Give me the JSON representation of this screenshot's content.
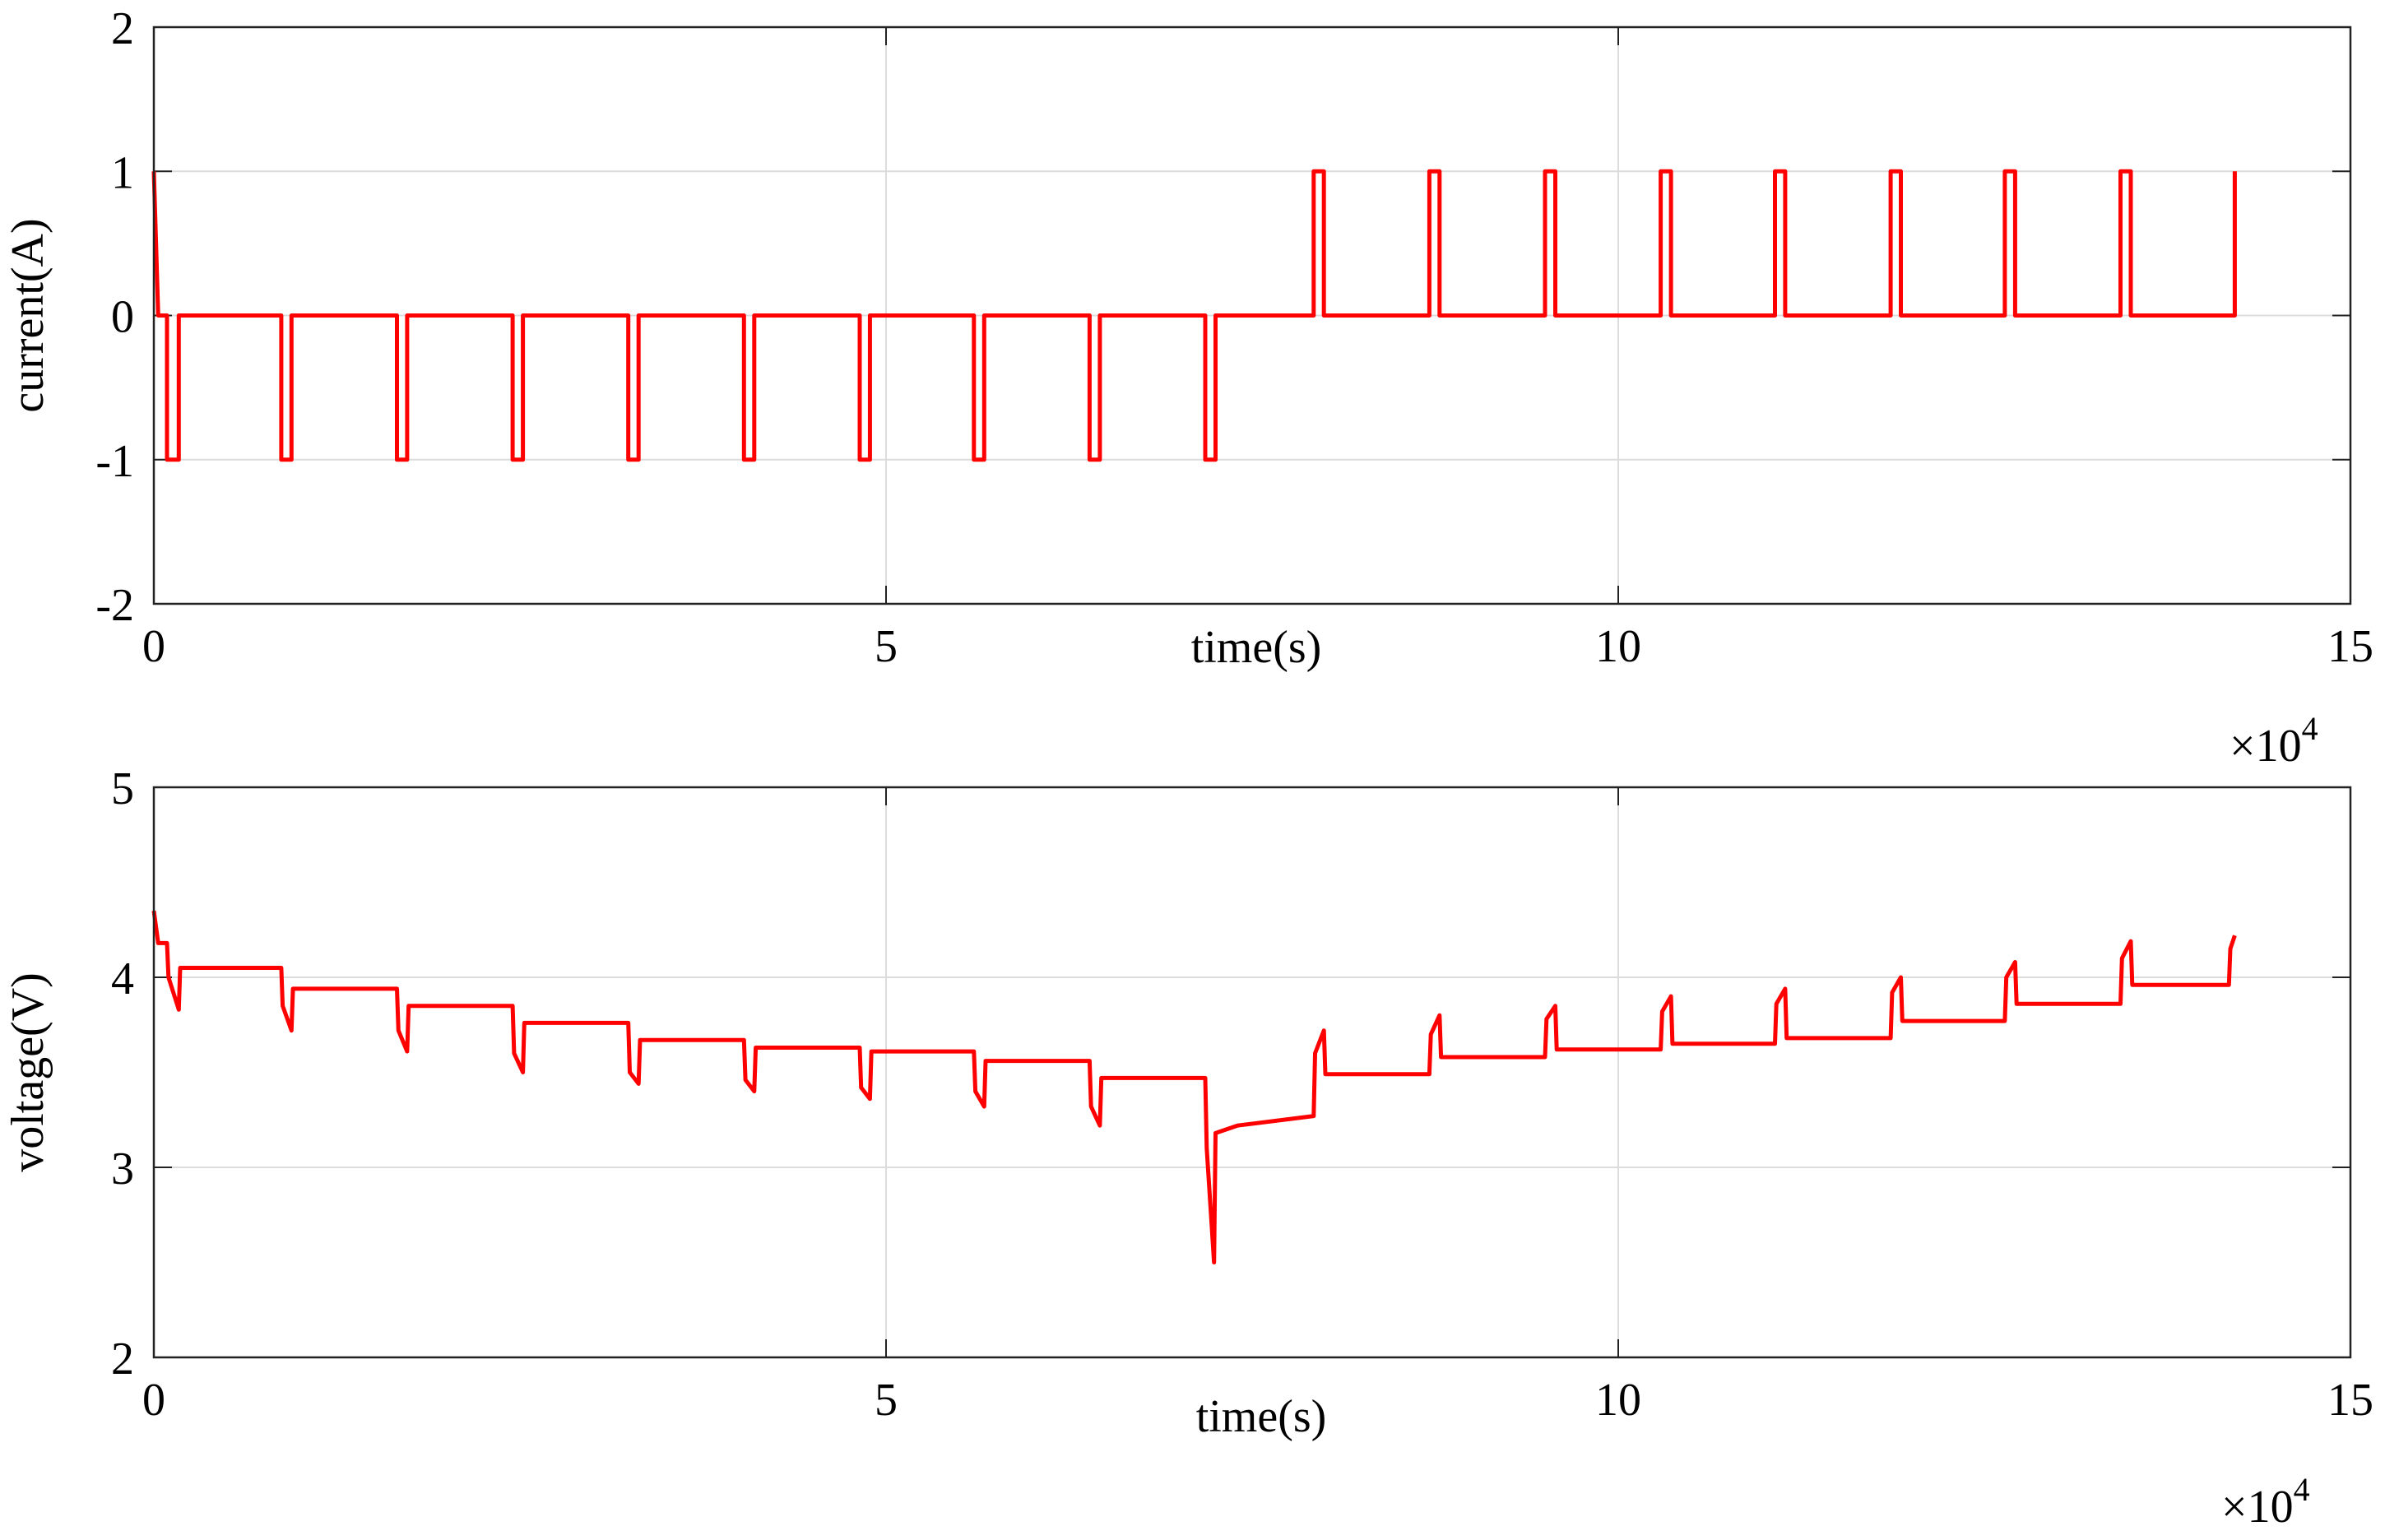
{
  "chart_data": [
    {
      "type": "line",
      "x_label": "time(s)",
      "y_label": "current(A)",
      "x_multiplier": {
        "base": "×10",
        "exponent": "4"
      },
      "xlim": [
        0,
        15
      ],
      "xticks": [
        0,
        5,
        10,
        15
      ],
      "ylim": [
        -2,
        2
      ],
      "yticks": [
        -2,
        -1,
        0,
        1,
        2
      ],
      "grid": true,
      "x": [
        0,
        0.03,
        0.09,
        0.09,
        0.17,
        0.17,
        0.87,
        0.87,
        0.94,
        0.94,
        1.66,
        1.66,
        1.73,
        1.73,
        2.45,
        2.45,
        2.52,
        2.52,
        3.24,
        3.24,
        3.31,
        3.31,
        4.03,
        4.03,
        4.1,
        4.1,
        4.82,
        4.82,
        4.89,
        4.89,
        5.6,
        5.6,
        5.67,
        5.67,
        6.39,
        6.39,
        6.46,
        6.46,
        7.18,
        7.18,
        7.25,
        7.25,
        7.92,
        7.92,
        7.99,
        7.99,
        8.71,
        8.71,
        8.78,
        8.78,
        9.5,
        9.5,
        9.57,
        9.57,
        10.29,
        10.29,
        10.36,
        10.36,
        11.07,
        11.07,
        11.14,
        11.14,
        11.86,
        11.86,
        11.93,
        11.93,
        12.64,
        12.64,
        12.71,
        12.71,
        13.43,
        13.43,
        13.5,
        13.5,
        14.21,
        14.21
      ],
      "series": [
        {
          "color": "#ff0000",
          "values": [
            1,
            0,
            0,
            -1,
            -1,
            0,
            0,
            -1,
            -1,
            0,
            0,
            -1,
            -1,
            0,
            0,
            -1,
            -1,
            0,
            0,
            -1,
            -1,
            0,
            0,
            -1,
            -1,
            0,
            0,
            -1,
            -1,
            0,
            0,
            -1,
            -1,
            0,
            0,
            -1,
            -1,
            0,
            0,
            -1,
            -1,
            0,
            0,
            1,
            1,
            0,
            0,
            1,
            1,
            0,
            0,
            1,
            1,
            0,
            0,
            1,
            1,
            0,
            0,
            1,
            1,
            0,
            0,
            1,
            1,
            0,
            0,
            1,
            1,
            0,
            0,
            1,
            1,
            0,
            0,
            1
          ]
        }
      ]
    },
    {
      "type": "line",
      "x_label": "time(s)",
      "y_label": "voltage(V)",
      "x_multiplier": {
        "base": "×10",
        "exponent": "4"
      },
      "xlim": [
        0,
        15
      ],
      "xticks": [
        0,
        5,
        10,
        15
      ],
      "ylim": [
        2,
        5
      ],
      "yticks": [
        2,
        3,
        4,
        5
      ],
      "grid": true,
      "x": [
        0,
        0.03,
        0.09,
        0.1,
        0.17,
        0.18,
        0.87,
        0.88,
        0.94,
        0.95,
        1.66,
        1.67,
        1.73,
        1.74,
        2.45,
        2.46,
        2.52,
        2.53,
        3.24,
        3.25,
        3.31,
        3.32,
        4.03,
        4.04,
        4.1,
        4.11,
        4.82,
        4.83,
        4.89,
        4.9,
        5.6,
        5.61,
        5.67,
        5.68,
        6.39,
        6.4,
        6.46,
        6.47,
        7.18,
        7.19,
        7.24,
        7.25,
        7.4,
        7.92,
        7.93,
        7.99,
        8.0,
        8.71,
        8.72,
        8.78,
        8.79,
        9.5,
        9.51,
        9.57,
        9.58,
        10.29,
        10.3,
        10.36,
        10.37,
        11.07,
        11.08,
        11.14,
        11.15,
        11.86,
        11.87,
        11.93,
        11.94,
        12.64,
        12.65,
        12.71,
        12.72,
        13.43,
        13.44,
        13.5,
        13.51,
        14.17,
        14.18,
        14.21
      ],
      "series": [
        {
          "color": "#ff0000",
          "values": [
            4.35,
            4.18,
            4.18,
            4.0,
            3.83,
            4.05,
            4.05,
            3.85,
            3.72,
            3.94,
            3.94,
            3.72,
            3.61,
            3.85,
            3.85,
            3.6,
            3.5,
            3.76,
            3.76,
            3.5,
            3.44,
            3.67,
            3.67,
            3.46,
            3.4,
            3.63,
            3.63,
            3.42,
            3.36,
            3.61,
            3.61,
            3.4,
            3.32,
            3.56,
            3.56,
            3.32,
            3.22,
            3.47,
            3.47,
            3.1,
            2.5,
            3.18,
            3.22,
            3.27,
            3.6,
            3.72,
            3.49,
            3.49,
            3.7,
            3.8,
            3.58,
            3.58,
            3.78,
            3.85,
            3.62,
            3.62,
            3.82,
            3.9,
            3.65,
            3.65,
            3.86,
            3.94,
            3.68,
            3.68,
            3.92,
            4.0,
            3.77,
            3.77,
            4.0,
            4.08,
            3.86,
            3.86,
            4.1,
            4.19,
            3.96,
            3.96,
            4.15,
            4.22
          ]
        }
      ]
    }
  ]
}
